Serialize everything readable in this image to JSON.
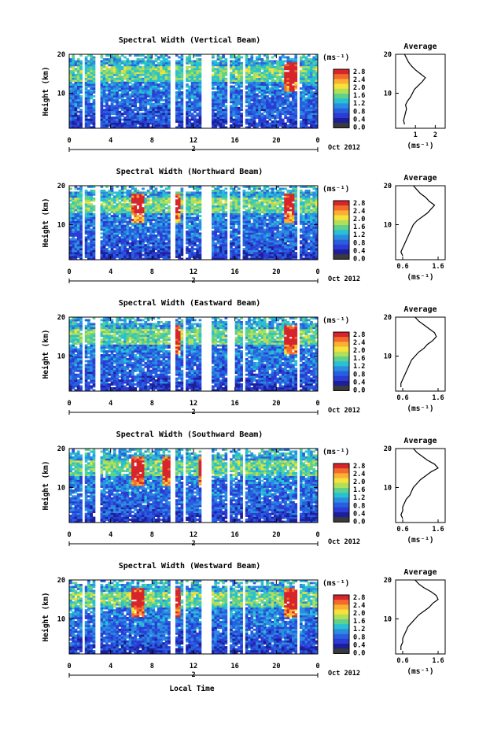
{
  "colorbar": {
    "unit": "(ms⁻¹)",
    "ticks": [
      "2.8",
      "2.4",
      "2.0",
      "1.6",
      "1.2",
      "0.8",
      "0.4",
      "0.0"
    ],
    "colors": [
      "#d7262b",
      "#f36b2c",
      "#fbb034",
      "#f5e23a",
      "#b2df5a",
      "#5fd18b",
      "#27c0d4",
      "#2c8ce0",
      "#2660df",
      "#2b3bd4",
      "#1c1f9a",
      "#3a3a3a"
    ]
  },
  "xaxis": {
    "ticks": [
      "0",
      "4",
      "8",
      "12",
      "16",
      "20",
      "0"
    ],
    "tick_values": [
      0,
      4,
      8,
      12,
      16,
      20,
      24
    ],
    "day": "2",
    "month_label": "Oct 2012",
    "label": "Local Time"
  },
  "yaxis": {
    "label": "Height (km)",
    "ticks": [
      "20",
      "10"
    ],
    "tick_values": [
      20,
      10
    ]
  },
  "chart_data": [
    {
      "type": "heatmap",
      "title": "Spectral Width (Vertical Beam)",
      "ylabel": "Height (km)",
      "xlim": [
        0,
        24
      ],
      "ylim": [
        1,
        20
      ],
      "colorbar_label": "(ms⁻¹)",
      "colorbar_range": [
        0.0,
        3.0
      ],
      "gaps": [
        [
          1.3,
          1.5
        ],
        [
          2.4,
          3.0
        ],
        [
          9.8,
          10.2
        ],
        [
          10.9,
          11.2
        ],
        [
          12.7,
          13.8
        ],
        [
          15.3,
          15.5
        ],
        [
          16.8,
          17.0
        ],
        [
          22.0,
          22.3
        ]
      ],
      "hot_times": [
        21.3,
        21.7
      ],
      "average_profile": {
        "title": "Average",
        "xlabel": "(ms⁻¹)",
        "xticks": [
          "1",
          "2"
        ],
        "xlim": [
          0,
          2.5
        ],
        "xtick_values": [
          1,
          2
        ],
        "height": [
          2,
          3,
          4,
          5,
          6,
          7,
          8,
          9,
          10,
          11,
          12,
          13,
          14,
          15,
          16,
          17,
          18,
          19,
          20
        ],
        "value": [
          0.45,
          0.4,
          0.45,
          0.5,
          0.55,
          0.5,
          0.6,
          0.75,
          0.85,
          0.95,
          1.15,
          1.35,
          1.5,
          1.25,
          1.0,
          0.8,
          0.65,
          0.55,
          0.45
        ]
      }
    },
    {
      "type": "heatmap",
      "title": "Spectral Width (Northward Beam)",
      "ylabel": "Height (km)",
      "xlim": [
        0,
        24
      ],
      "ylim": [
        1,
        20
      ],
      "colorbar_label": "(ms⁻¹)",
      "colorbar_range": [
        0.0,
        3.0
      ],
      "gaps": [
        [
          1.3,
          1.5
        ],
        [
          2.4,
          3.0
        ],
        [
          9.8,
          10.2
        ],
        [
          10.9,
          11.2
        ],
        [
          12.7,
          13.8
        ],
        [
          15.3,
          15.6
        ],
        [
          16.4,
          16.7
        ],
        [
          22.0,
          22.3
        ]
      ],
      "hot_times": [
        6.6,
        10.3,
        21.2
      ],
      "average_profile": {
        "title": "Average",
        "xlabel": "(ms⁻¹)",
        "xticks": [
          "0.6",
          "1.6"
        ],
        "xlim": [
          0.4,
          1.8
        ],
        "xtick_values": [
          0.6,
          1.6
        ],
        "height": [
          2,
          3,
          4,
          5,
          6,
          7,
          8,
          9,
          10,
          11,
          12,
          13,
          14,
          15,
          16,
          17,
          18,
          19,
          20
        ],
        "value": [
          0.6,
          0.55,
          0.6,
          0.65,
          0.7,
          0.75,
          0.8,
          0.85,
          0.9,
          1.0,
          1.15,
          1.3,
          1.4,
          1.5,
          1.35,
          1.25,
          1.1,
          1.0,
          0.9
        ]
      }
    },
    {
      "type": "heatmap",
      "title": "Spectral Width (Eastward Beam)",
      "ylabel": "Height (km)",
      "xlim": [
        0,
        24
      ],
      "ylim": [
        1,
        20
      ],
      "colorbar_label": "(ms⁻¹)",
      "colorbar_range": [
        0.0,
        3.0
      ],
      "gaps": [
        [
          1.3,
          1.5
        ],
        [
          2.4,
          3.0
        ],
        [
          9.8,
          10.2
        ],
        [
          10.9,
          11.2
        ],
        [
          12.7,
          13.8
        ],
        [
          15.3,
          16.1
        ],
        [
          16.8,
          17.0
        ],
        [
          22.0,
          22.3
        ]
      ],
      "hot_times": [
        10.3,
        21.4
      ],
      "average_profile": {
        "title": "Average",
        "xlabel": "(ms⁻¹)",
        "xticks": [
          "0.6",
          "1.6"
        ],
        "xlim": [
          0.4,
          1.8
        ],
        "xtick_values": [
          0.6,
          1.6
        ],
        "height": [
          2,
          3,
          4,
          5,
          6,
          7,
          8,
          9,
          10,
          11,
          12,
          13,
          14,
          15,
          16,
          17,
          18,
          19,
          20
        ],
        "value": [
          0.55,
          0.55,
          0.6,
          0.65,
          0.7,
          0.75,
          0.8,
          0.85,
          0.95,
          1.05,
          1.2,
          1.3,
          1.45,
          1.55,
          1.5,
          1.35,
          1.2,
          1.05,
          0.95
        ]
      }
    },
    {
      "type": "heatmap",
      "title": "Spectral Width (Southward Beam)",
      "ylabel": "Height (km)",
      "xlim": [
        0,
        24
      ],
      "ylim": [
        1,
        20
      ],
      "colorbar_label": "(ms⁻¹)",
      "colorbar_range": [
        0.0,
        3.0
      ],
      "gaps": [
        [
          1.3,
          1.5
        ],
        [
          2.4,
          3.0
        ],
        [
          9.8,
          10.2
        ],
        [
          10.9,
          11.2
        ],
        [
          12.7,
          13.8
        ],
        [
          15.3,
          15.5
        ],
        [
          16.8,
          17.0
        ],
        [
          22.0,
          22.3
        ]
      ],
      "hot_times": [
        6.6,
        9.6,
        13.0
      ],
      "average_profile": {
        "title": "Average",
        "xlabel": "(ms⁻¹)",
        "xticks": [
          "0.6",
          "1.6"
        ],
        "xlim": [
          0.4,
          1.8
        ],
        "xtick_values": [
          0.6,
          1.6
        ],
        "height": [
          2,
          3,
          4,
          5,
          6,
          7,
          8,
          9,
          10,
          11,
          12,
          13,
          14,
          15,
          16,
          17,
          18,
          19,
          20
        ],
        "value": [
          0.6,
          0.55,
          0.6,
          0.6,
          0.65,
          0.7,
          0.8,
          0.85,
          0.9,
          1.0,
          1.1,
          1.25,
          1.4,
          1.6,
          1.5,
          1.3,
          1.15,
          1.0,
          0.9
        ]
      }
    },
    {
      "type": "heatmap",
      "title": "Spectral Width (Westward Beam)",
      "ylabel": "Height (km)",
      "xlim": [
        0,
        24
      ],
      "ylim": [
        1,
        20
      ],
      "colorbar_label": "(ms⁻¹)",
      "colorbar_range": [
        0.0,
        3.0
      ],
      "gaps": [
        [
          1.3,
          1.5
        ],
        [
          2.4,
          3.0
        ],
        [
          9.8,
          10.2
        ],
        [
          10.9,
          11.2
        ],
        [
          12.7,
          13.8
        ],
        [
          15.3,
          15.5
        ],
        [
          16.8,
          17.0
        ],
        [
          22.0,
          22.3
        ]
      ],
      "hot_times": [
        6.6,
        10.3,
        21.4
      ],
      "average_profile": {
        "title": "Average",
        "xlabel": "(ms⁻¹)",
        "xticks": [
          "0.6",
          "1.6"
        ],
        "xlim": [
          0.4,
          1.8
        ],
        "xtick_values": [
          0.6,
          1.6
        ],
        "height": [
          2,
          3,
          4,
          5,
          6,
          7,
          8,
          9,
          10,
          11,
          12,
          13,
          14,
          15,
          16,
          17,
          18,
          19,
          20
        ],
        "value": [
          0.55,
          0.55,
          0.6,
          0.6,
          0.65,
          0.7,
          0.75,
          0.85,
          0.95,
          1.05,
          1.2,
          1.35,
          1.45,
          1.6,
          1.55,
          1.4,
          1.2,
          1.05,
          0.95
        ]
      }
    }
  ]
}
